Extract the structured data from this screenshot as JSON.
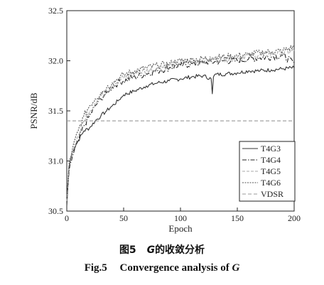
{
  "chart_data": {
    "type": "line",
    "xlabel": "Epoch",
    "ylabel": "PSNR/dB",
    "xlim": [
      0,
      200
    ],
    "ylim": [
      30.5,
      32.5
    ],
    "xticks": [
      0,
      50,
      100,
      150,
      200
    ],
    "yticks": [
      30.5,
      31.0,
      31.5,
      32.0,
      32.5
    ],
    "legend_position": "bottom-right",
    "grid": false,
    "series": [
      {
        "name": "T4G3",
        "style": "solid",
        "color": "#333333",
        "x": [
          0,
          2,
          5,
          10,
          15,
          20,
          25,
          30,
          35,
          40,
          45,
          50,
          60,
          70,
          80,
          90,
          100,
          110,
          120,
          127,
          128,
          129,
          130,
          140,
          150,
          160,
          170,
          180,
          190,
          200
        ],
        "y": [
          30.55,
          30.95,
          31.1,
          31.2,
          31.3,
          31.33,
          31.4,
          31.45,
          31.5,
          31.55,
          31.6,
          31.66,
          31.7,
          31.75,
          31.78,
          31.8,
          31.82,
          31.84,
          31.85,
          31.82,
          31.67,
          31.84,
          31.86,
          31.87,
          31.88,
          31.9,
          31.9,
          31.91,
          31.92,
          31.93
        ]
      },
      {
        "name": "T4G4",
        "style": "dashdot",
        "color": "#222222",
        "x": [
          0,
          2,
          5,
          10,
          15,
          20,
          25,
          30,
          35,
          40,
          45,
          50,
          60,
          70,
          80,
          90,
          100,
          110,
          120,
          130,
          140,
          150,
          160,
          170,
          180,
          190,
          200
        ],
        "y": [
          30.6,
          30.9,
          31.05,
          31.2,
          31.35,
          31.45,
          31.55,
          31.62,
          31.68,
          31.74,
          31.78,
          31.8,
          31.84,
          31.87,
          31.9,
          31.93,
          31.95,
          31.97,
          31.98,
          31.99,
          32.0,
          32.0,
          32.02,
          32.03,
          32.04,
          32.05,
          31.98
        ]
      },
      {
        "name": "T4G5",
        "style": "dashed",
        "color": "#aaaaaa",
        "x": [
          0,
          2,
          5,
          10,
          15,
          20,
          25,
          30,
          35,
          40,
          45,
          50,
          60,
          70,
          80,
          90,
          100,
          110,
          120,
          130,
          140,
          150,
          160,
          170,
          180,
          190,
          200
        ],
        "y": [
          30.6,
          30.95,
          31.1,
          31.25,
          31.4,
          31.5,
          31.58,
          31.65,
          31.7,
          31.75,
          31.8,
          31.83,
          31.88,
          31.9,
          31.93,
          31.95,
          31.98,
          31.99,
          32.0,
          32.02,
          32.02,
          32.04,
          32.05,
          32.06,
          32.07,
          32.08,
          32.1
        ]
      },
      {
        "name": "T4G6",
        "style": "dotted",
        "color": "#555555",
        "x": [
          0,
          2,
          5,
          10,
          15,
          20,
          25,
          30,
          35,
          40,
          45,
          50,
          60,
          70,
          80,
          90,
          100,
          110,
          120,
          130,
          140,
          150,
          160,
          170,
          180,
          190,
          200
        ],
        "y": [
          30.62,
          30.97,
          31.12,
          31.3,
          31.45,
          31.55,
          31.62,
          31.68,
          31.73,
          31.78,
          31.82,
          31.86,
          31.9,
          31.93,
          31.95,
          31.97,
          32.0,
          32.01,
          32.02,
          32.03,
          32.04,
          32.05,
          32.06,
          32.08,
          32.09,
          32.1,
          32.14
        ]
      },
      {
        "name": "VDSR",
        "style": "dashed-light",
        "color": "#999999",
        "x": [
          0,
          200
        ],
        "y": [
          31.4,
          31.4
        ]
      }
    ]
  },
  "caption": {
    "cn_prefix": "图5",
    "cn_var": "G",
    "cn_text": "的收敛分析",
    "en_prefix": "Fig.5",
    "en_text": "Convergence analysis of",
    "en_var": "G"
  }
}
